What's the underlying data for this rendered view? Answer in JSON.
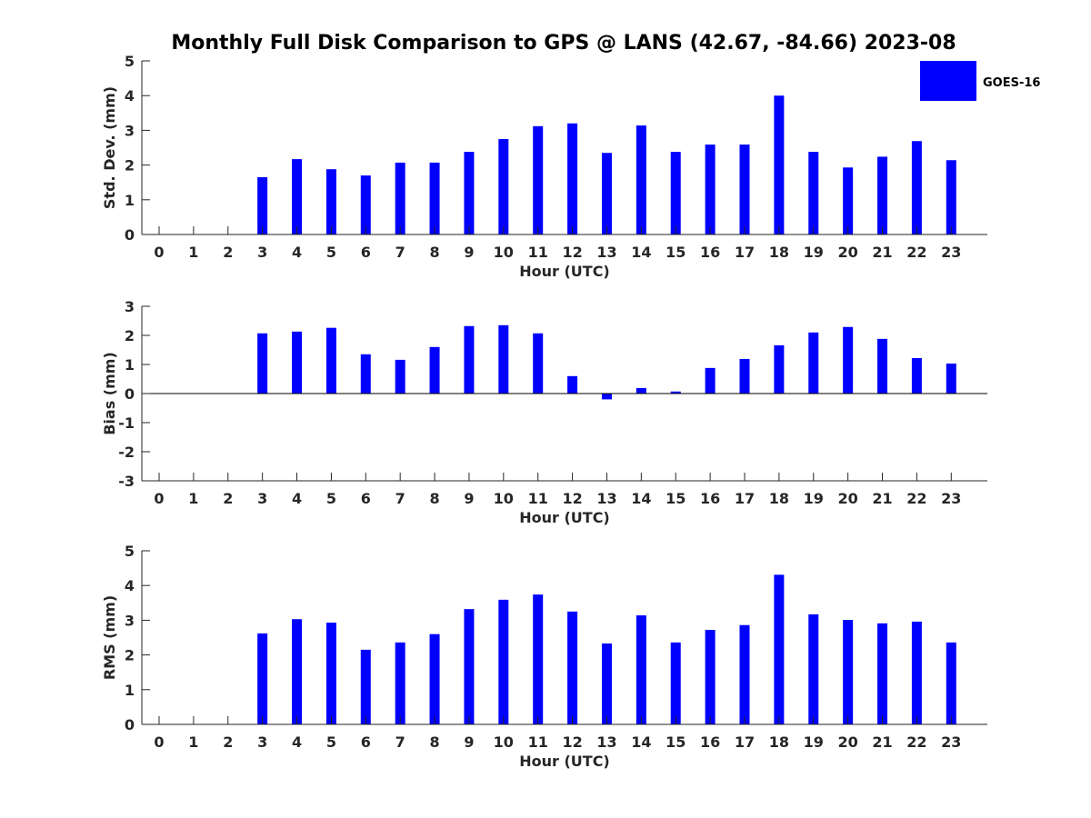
{
  "title": "Monthly Full Disk Comparison to GPS @ LANS (42.67, -84.66) 2023-08",
  "legend": {
    "label": "GOES-16",
    "color": "#0000ff"
  },
  "chart_data": [
    {
      "type": "bar",
      "name": "stddev",
      "xlabel": "Hour (UTC)",
      "ylabel": "Std. Dev. (mm)",
      "ylim": [
        0,
        5
      ],
      "yticks": [
        0,
        1,
        2,
        3,
        4,
        5
      ],
      "categories": [
        "0",
        "1",
        "2",
        "3",
        "4",
        "5",
        "6",
        "7",
        "8",
        "9",
        "10",
        "11",
        "12",
        "13",
        "14",
        "15",
        "16",
        "17",
        "18",
        "19",
        "20",
        "21",
        "22",
        "23"
      ],
      "series": [
        {
          "name": "GOES-16",
          "values": [
            null,
            null,
            null,
            1.65,
            2.17,
            1.88,
            1.7,
            2.07,
            2.07,
            2.38,
            2.75,
            3.12,
            3.2,
            2.35,
            3.14,
            2.38,
            2.59,
            2.59,
            4.0,
            2.38,
            1.93,
            2.24,
            2.69,
            2.14
          ]
        }
      ]
    },
    {
      "type": "bar",
      "name": "bias",
      "xlabel": "Hour (UTC)",
      "ylabel": "Bias (mm)",
      "ylim": [
        -3,
        3
      ],
      "yticks": [
        -3,
        -2,
        -1,
        0,
        1,
        2,
        3
      ],
      "categories": [
        "0",
        "1",
        "2",
        "3",
        "4",
        "5",
        "6",
        "7",
        "8",
        "9",
        "10",
        "11",
        "12",
        "13",
        "14",
        "15",
        "16",
        "17",
        "18",
        "19",
        "20",
        "21",
        "22",
        "23"
      ],
      "series": [
        {
          "name": "GOES-16",
          "values": [
            null,
            null,
            null,
            2.07,
            2.13,
            2.26,
            1.35,
            1.16,
            1.6,
            2.32,
            2.35,
            2.07,
            0.6,
            -0.2,
            0.19,
            0.07,
            0.88,
            1.19,
            1.66,
            2.1,
            2.29,
            1.88,
            1.22,
            1.03
          ]
        }
      ]
    },
    {
      "type": "bar",
      "name": "rms",
      "xlabel": "Hour (UTC)",
      "ylabel": "RMS (mm)",
      "ylim": [
        0,
        5
      ],
      "yticks": [
        0,
        1,
        2,
        3,
        4,
        5
      ],
      "categories": [
        "0",
        "1",
        "2",
        "3",
        "4",
        "5",
        "6",
        "7",
        "8",
        "9",
        "10",
        "11",
        "12",
        "13",
        "14",
        "15",
        "16",
        "17",
        "18",
        "19",
        "20",
        "21",
        "22",
        "23"
      ],
      "series": [
        {
          "name": "GOES-16",
          "values": [
            null,
            null,
            null,
            2.62,
            3.03,
            2.93,
            2.15,
            2.36,
            2.6,
            3.32,
            3.59,
            3.74,
            3.25,
            2.33,
            3.14,
            2.36,
            2.72,
            2.86,
            4.31,
            3.17,
            3.01,
            2.91,
            2.96,
            2.36
          ]
        }
      ]
    }
  ]
}
